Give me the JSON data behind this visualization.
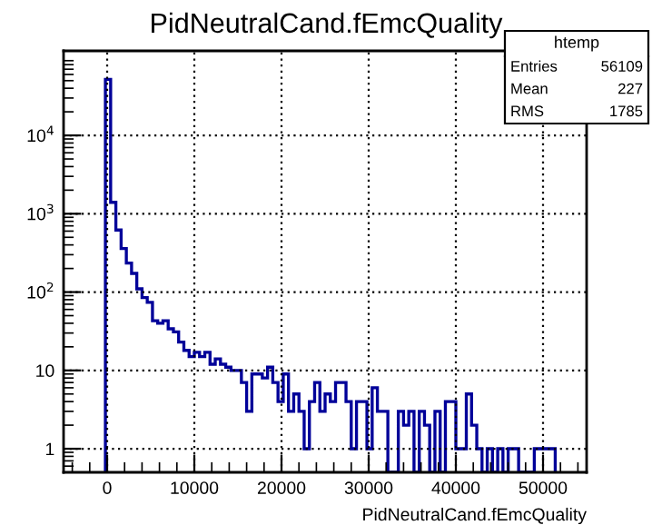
{
  "chart_data": {
    "type": "histogram",
    "title": "PidNeutralCand.fEmcQuality",
    "xlabel": "PidNeutralCand.fEmcQuality",
    "bins": [
      -200,
      400,
      1000,
      1600,
      2200,
      2800,
      3400,
      4000,
      4600,
      5200,
      5800,
      6400,
      7000,
      7600,
      8200,
      8800,
      9400,
      10000,
      10600,
      11200,
      11800,
      12400,
      13000,
      13600,
      14200,
      14800,
      15400,
      16000,
      16600,
      17200,
      17800,
      18400,
      19000,
      19600,
      20200,
      20800,
      21400,
      22000,
      22600,
      23200,
      23800,
      24400,
      25000,
      25600,
      26200,
      26800,
      27400,
      28000,
      28600,
      29200,
      29800,
      30400,
      31000,
      31600,
      32200,
      32800,
      33400,
      34000,
      34600,
      35200,
      35800,
      36400,
      37000,
      37600,
      38200,
      38800,
      39400,
      40000,
      40600,
      41200,
      41800,
      42400,
      43000,
      43600,
      44200,
      44800,
      45400,
      46000,
      46600,
      47200,
      47800,
      48400,
      49000,
      49600,
      50200,
      50800,
      51400
    ],
    "values": [
      52000,
      1400,
      620,
      360,
      235,
      173,
      110,
      85,
      74,
      43,
      40,
      43,
      34,
      31,
      23,
      18,
      15,
      17,
      15,
      17,
      12,
      14,
      12,
      11,
      10,
      10,
      7,
      3,
      9,
      9,
      8,
      11,
      7,
      4,
      9,
      3,
      5,
      3,
      1,
      4,
      7,
      3,
      5,
      4,
      7,
      7,
      4,
      1,
      4,
      4,
      1,
      6,
      3,
      3,
      null,
      null,
      3,
      2,
      3,
      null,
      3,
      2,
      null,
      3,
      null,
      4,
      4,
      1,
      1,
      5,
      2,
      1,
      null,
      1,
      null,
      1,
      null,
      1,
      1,
      null,
      null,
      null,
      1,
      1,
      1,
      1
    ],
    "color": "#000099",
    "xlim": [
      -5000,
      55000
    ],
    "xticks": [
      0,
      10000,
      20000,
      30000,
      40000,
      50000
    ],
    "log": true,
    "ylim": [
      0.5,
      120000
    ],
    "yticks": [
      1,
      10,
      {
        "value": 100,
        "label": "10$^{2}$"
      },
      {
        "value": 1000,
        "label": "10$^{3}$"
      },
      {
        "value": 10000,
        "label": "10$^{4}$"
      }
    ],
    "grid": true,
    "annotations": [
      "htemp",
      "Entries",
      "56109",
      "Mean",
      "227",
      "RMS",
      "1785"
    ]
  }
}
